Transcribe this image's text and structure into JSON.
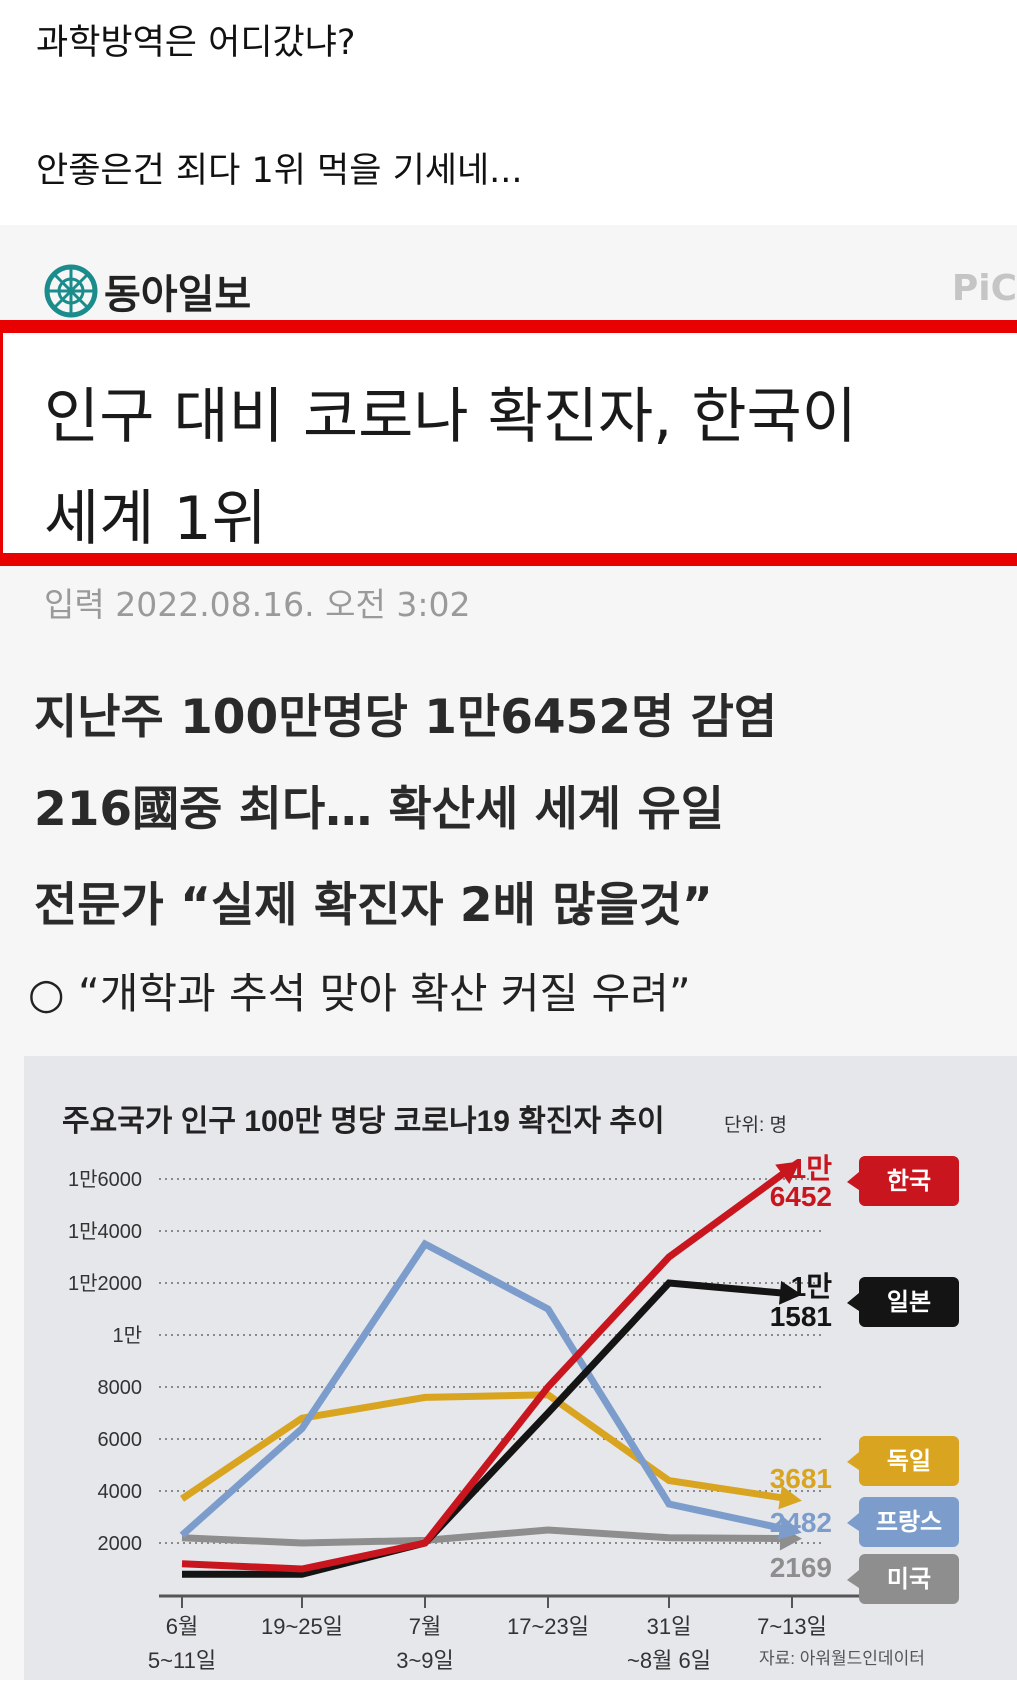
{
  "post": {
    "line1": "과학방역은 어디갔냐?",
    "line2": "안좋은건 죄다 1위 먹을 기세네..."
  },
  "article": {
    "publisher": "동아일보",
    "corner_tag": "PiC",
    "headline_line1": "인구 대비 코로나 확진자, 한국이",
    "headline_line2": "세계 1위",
    "date": "입력 2022.08.16. 오전 3:02",
    "subheads": [
      "지난주 100만명당 1만6452명 감염",
      "216國중 최다… 확산세 세계 유일",
      "전문가 “실제 확진자 2배 많을것”"
    ],
    "bullet": "○ “개학과 추석 맞아 확산 커질 우려”"
  },
  "chart_data": {
    "type": "line",
    "title": "주요국가 인구 100만 명당 코로나19 확진자 추이",
    "unit": "단위: 명",
    "source": "자료: 아워월드인데이터",
    "categories": [
      [
        "6월",
        "5~11일"
      ],
      [
        "19~25일",
        ""
      ],
      [
        "7월",
        "3~9일"
      ],
      [
        "17~23일",
        ""
      ],
      [
        "31일",
        "~8월 6일"
      ],
      [
        "7~13일",
        ""
      ]
    ],
    "y_ticks": [
      {
        "value": 2000,
        "label": "2000"
      },
      {
        "value": 4000,
        "label": "4000"
      },
      {
        "value": 6000,
        "label": "6000"
      },
      {
        "value": 8000,
        "label": "8000"
      },
      {
        "value": 10000,
        "label": "1만"
      },
      {
        "value": 12000,
        "label": "1만2000"
      },
      {
        "value": 14000,
        "label": "1만4000"
      },
      {
        "value": 16000,
        "label": "1만6000"
      }
    ],
    "ylim": [
      0,
      17000
    ],
    "grid": true,
    "series": [
      {
        "name": "미국",
        "color": "#8e8e8e",
        "values": [
          2200,
          2000,
          2100,
          2500,
          2200,
          2169
        ],
        "end_label": [
          "2169"
        ]
      },
      {
        "name": "독일",
        "color": "#d9a521",
        "values": [
          3700,
          6800,
          7600,
          7700,
          4400,
          3681
        ],
        "end_label": [
          "3681"
        ]
      },
      {
        "name": "프랑스",
        "color": "#7c9ccc",
        "values": [
          2300,
          6400,
          13500,
          11000,
          3500,
          2482
        ],
        "end_label": [
          "2482"
        ]
      },
      {
        "name": "일본",
        "color": "#141414",
        "values": [
          800,
          800,
          2000,
          7000,
          12000,
          11581
        ],
        "end_label": [
          "1만",
          "1581"
        ]
      },
      {
        "name": "한국",
        "color": "#c8151e",
        "values": [
          1200,
          1000,
          2000,
          8000,
          13000,
          16452
        ],
        "end_label": [
          "1만",
          "6452"
        ]
      }
    ]
  }
}
